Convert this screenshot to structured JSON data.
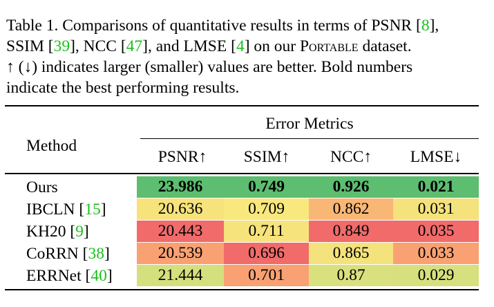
{
  "caption": {
    "l1_a": "Table 1. Comparisons of quantitative results in terms of PSNR [",
    "l1_ref": "8",
    "l1_b": "],",
    "l2_a": "SSIM [",
    "l2_ref1": "39",
    "l2_b": "], NCC [",
    "l2_ref2": "47",
    "l2_c": "], and LMSE [",
    "l2_ref3": "4",
    "l2_d": "] on our ",
    "l2_dataset": "Portable",
    "l2_e": " dataset.",
    "l3": "↑ (↓) indicates larger (smaller) values are better.  Bold numbers",
    "l4": "indicate the best performing results."
  },
  "table": {
    "group_header": "Error Metrics",
    "method_header": "Method",
    "columns": [
      "PSNR↑",
      "SSIM↑",
      "NCC↑",
      "LMSE↓"
    ],
    "rows": [
      {
        "method": "Ours",
        "ref": "",
        "values": [
          "23.986",
          "0.749",
          "0.926",
          "0.021"
        ],
        "colors": [
          "#5dbd70",
          "#5dbd70",
          "#5dbd70",
          "#5dbd70"
        ]
      },
      {
        "method": "IBCLN [",
        "ref": "15",
        "close": "]",
        "values": [
          "20.636",
          "0.709",
          "0.862",
          "0.031"
        ],
        "colors": [
          "#f6e37c",
          "#f9e87e",
          "#f9b775",
          "#f4e27c"
        ]
      },
      {
        "method": "KH20 [",
        "ref": "9",
        "close": "]",
        "values": [
          "20.443",
          "0.711",
          "0.849",
          "0.035"
        ],
        "colors": [
          "#f06b6a",
          "#f6e37c",
          "#f06b6a",
          "#f06b6a"
        ]
      },
      {
        "method": "CoRRN [",
        "ref": "38",
        "close": "]",
        "values": [
          "20.539",
          "0.696",
          "0.865",
          "0.033"
        ],
        "colors": [
          "#f9a172",
          "#f06b6a",
          "#f4e27c",
          "#f9a172"
        ]
      },
      {
        "method": "ERRNet [",
        "ref": "40",
        "close": "]",
        "values": [
          "21.444",
          "0.701",
          "0.87",
          "0.029"
        ],
        "colors": [
          "#d4e07e",
          "#f9a172",
          "#d9e07e",
          "#d6e07e"
        ]
      }
    ]
  }
}
